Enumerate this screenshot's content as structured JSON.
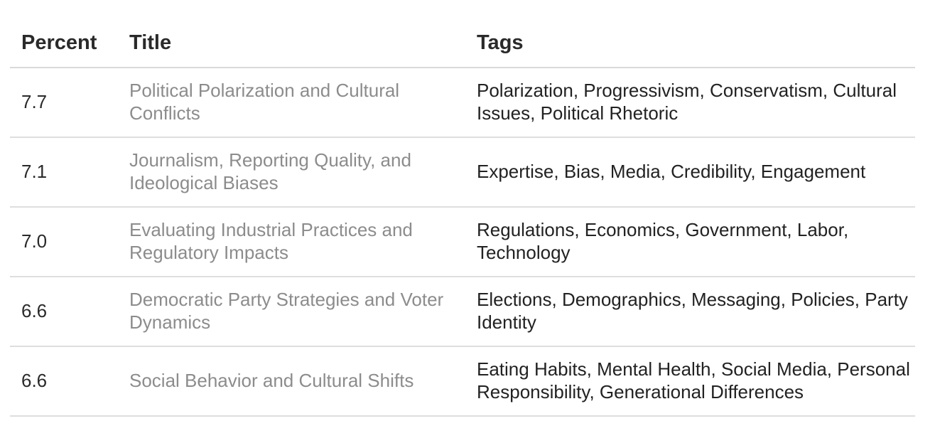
{
  "table": {
    "headers": {
      "percent": "Percent",
      "title": "Title",
      "tags": "Tags"
    },
    "rows": [
      {
        "percent": "7.7",
        "title": "Political Polarization and Cultural Conflicts",
        "tags": "Polarization, Progressivism, Conservatism, Cultural Issues, Political Rhetoric"
      },
      {
        "percent": "7.1",
        "title": "Journalism, Reporting Quality, and Ideological Biases",
        "tags": "Expertise, Bias, Media, Credibility, Engagement"
      },
      {
        "percent": "7.0",
        "title": "Evaluating Industrial Practices and Regulatory Impacts",
        "tags": "Regulations, Economics, Government, Labor, Technology"
      },
      {
        "percent": "6.6",
        "title": "Democratic Party Strategies and Voter Dynamics",
        "tags": "Elections, Demographics, Messaging, Policies, Party Identity"
      },
      {
        "percent": "6.6",
        "title": "Social Behavior and Cultural Shifts",
        "tags": "Eating Habits, Mental Health, Social Media, Personal Responsibility, Generational Differences"
      }
    ]
  }
}
